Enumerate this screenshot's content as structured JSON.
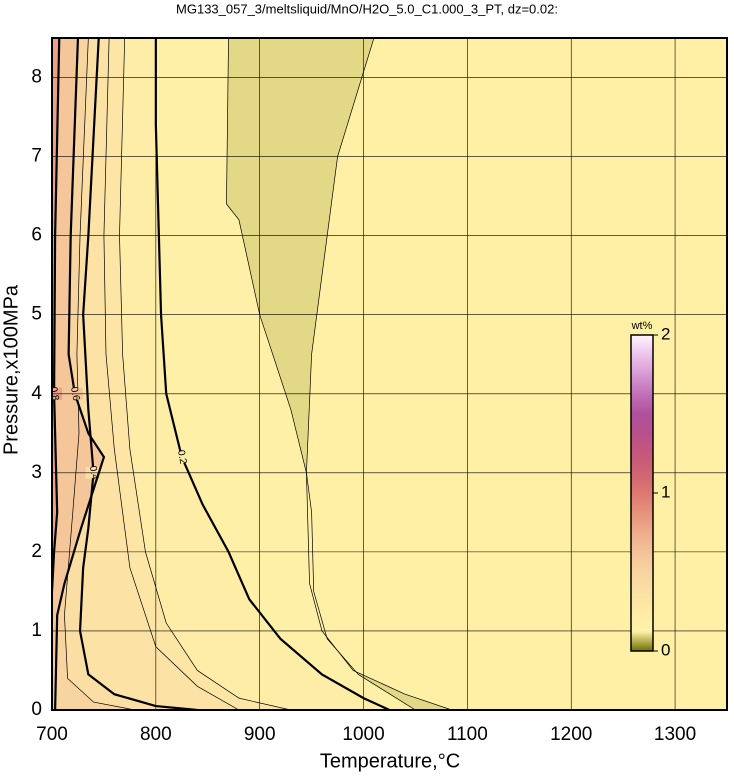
{
  "chart_data": {
    "type": "contour",
    "title": "MG133_057_3/meltsliquid/MnO/H2O_5.0_C1.000_3_PT, dz=0.02:",
    "xlabel": "Temperature,°C",
    "ylabel": "Pressure,x100MPa",
    "xlim": [
      700,
      1350
    ],
    "ylim": [
      0,
      8.5
    ],
    "xticks": [
      700,
      800,
      900,
      1000,
      1100,
      1200,
      1300
    ],
    "yticks": [
      0,
      1,
      2,
      3,
      4,
      5,
      6,
      7,
      8
    ],
    "grid": true,
    "background_color": "#fff0a6",
    "contours": [
      {
        "level": 0.2,
        "x": [
          800,
          800,
          805,
          810,
          825,
          845,
          870,
          890,
          920,
          960,
          1000,
          1025
        ],
        "y": [
          8.5,
          7.4,
          5.0,
          4.0,
          3.2,
          2.6,
          2.0,
          1.4,
          0.9,
          0.45,
          0.15,
          0
        ]
      },
      {
        "level": 0.4,
        "x": [
          745,
          735,
          730,
          735,
          740,
          735,
          730,
          727,
          735,
          760,
          800,
          840
        ],
        "y": [
          8.5,
          6.0,
          5.0,
          3.8,
          3.0,
          2.3,
          1.8,
          1.0,
          0.45,
          0.2,
          0.05,
          0
        ]
      },
      {
        "level": 0.6,
        "x": [
          725,
          718,
          716,
          722,
          735,
          750,
          728,
          712,
          705,
          703
        ],
        "y": [
          8.5,
          6.0,
          4.5,
          4.0,
          3.5,
          3.2,
          2.3,
          1.6,
          1.2,
          0
        ]
      },
      {
        "level": 0.8,
        "x": [
          707,
          703,
          702,
          705,
          702,
          700
        ],
        "y": [
          8.5,
          6.0,
          4.0,
          2.5,
          2.0,
          1.5
        ]
      }
    ],
    "minor_contours": [
      {
        "level": 0.1,
        "x": [
          1010,
          975,
          950,
          945,
          948,
          960,
          990,
          1040,
          1085
        ],
        "y": [
          8.5,
          7.0,
          4.5,
          3.0,
          1.6,
          1.0,
          0.5,
          0.2,
          0
        ]
      },
      {
        "level": 0.15,
        "x": [
          870,
          868,
          880,
          900,
          930,
          945,
          950,
          952,
          965,
          995,
          1050
        ],
        "y": [
          8.5,
          6.4,
          6.2,
          5.0,
          3.8,
          3.0,
          2.5,
          1.5,
          0.9,
          0.45,
          0
        ]
      },
      {
        "level": 0.3,
        "x": [
          770,
          765,
          768,
          775,
          790,
          810,
          840,
          880,
          930
        ],
        "y": [
          8.5,
          6.0,
          4.5,
          3.3,
          2.0,
          1.1,
          0.5,
          0.15,
          0
        ]
      },
      {
        "level": 0.35,
        "x": [
          755,
          750,
          752,
          760,
          775,
          800,
          840,
          880
        ],
        "y": [
          8.5,
          6.0,
          4.5,
          3.3,
          1.8,
          0.8,
          0.3,
          0
        ]
      },
      {
        "level": 0.5,
        "x": [
          735,
          727,
          724,
          726,
          720,
          712,
          715,
          740,
          780
        ],
        "y": [
          8.5,
          6.0,
          4.5,
          3.5,
          2.5,
          1.2,
          0.4,
          0.1,
          0
        ]
      }
    ],
    "colorbar": {
      "label": "wt%",
      "lim": [
        0,
        2
      ],
      "ticks": [
        0,
        1,
        2
      ],
      "colors": [
        "#707000",
        "#fff2a8",
        "#feeaa6",
        "#fbe0a4",
        "#f8d4a0",
        "#f4c298",
        "#eeac8c",
        "#e6927c",
        "#dc7870",
        "#d06470",
        "#c4587c",
        "#b8508c",
        "#b0509c",
        "#c070b8",
        "#d898d4",
        "#ecc4ec",
        "#fff4ff"
      ]
    }
  }
}
